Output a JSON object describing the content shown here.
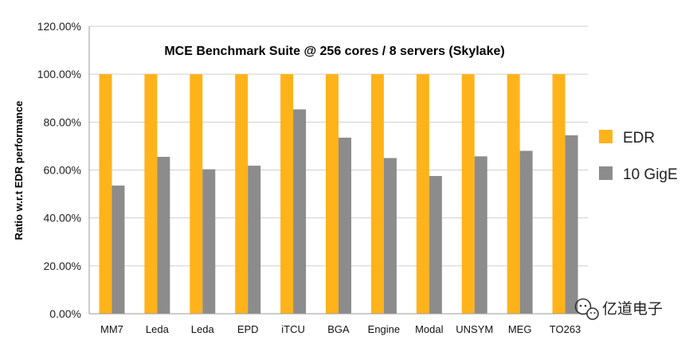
{
  "chart_data": {
    "type": "bar",
    "title": "MCE Benchmark Suite @ 256 cores / 8 servers (Skylake)",
    "ylabel": "Ratio w.r.t EDR performance",
    "xlabel": "",
    "ylim": [
      0,
      1.2
    ],
    "y_ticks": [
      "0.00%",
      "20.00%",
      "40.00%",
      "60.00%",
      "80.00%",
      "100.00%",
      "120.00%"
    ],
    "grid": "horizontal",
    "legend_position": "right",
    "categories": [
      "MM7",
      "Leda",
      "Leda",
      "EPD",
      "iTCU",
      "BGA",
      "Engine",
      "Modal",
      "UNSYM",
      "MEG",
      "TO263"
    ],
    "series": [
      {
        "name": "EDR",
        "color": "#ffb31a",
        "values": [
          1.0,
          1.0,
          1.0,
          1.0,
          1.0,
          1.0,
          1.0,
          1.0,
          1.0,
          1.0,
          1.0
        ]
      },
      {
        "name": "10 GigE",
        "color": "#8c8c8c",
        "values": [
          0.535,
          0.655,
          0.603,
          0.618,
          0.853,
          0.735,
          0.65,
          0.575,
          0.657,
          0.68,
          0.745
        ]
      }
    ]
  },
  "watermark": {
    "text": "亿道电子",
    "icon": "wechat-icon"
  }
}
